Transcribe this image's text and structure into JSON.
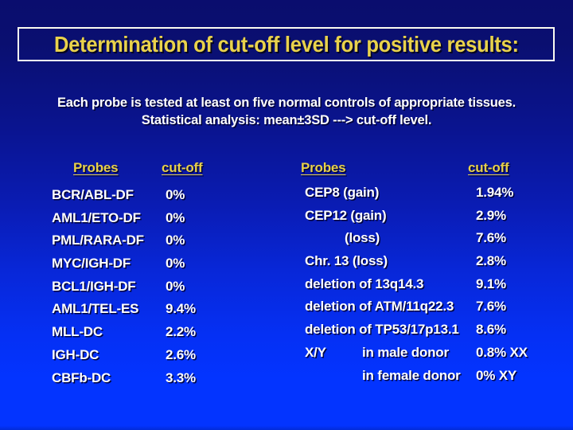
{
  "title": {
    "text": "Determination of cut-off level for positive results:"
  },
  "subtitle": {
    "line1": "Each probe is tested at least on five normal controls of appropriate tissues.",
    "line2": "Statistical analysis: mean±3SD ---> cut-off level."
  },
  "left_table": {
    "headers": {
      "probes": "Probes",
      "cutoff": "cut-off"
    },
    "rows": [
      {
        "probe": "BCR/ABL-DF",
        "cutoff": "0%"
      },
      {
        "probe": "AML1/ETO-DF",
        "cutoff": "0%"
      },
      {
        "probe": "PML/RARA-DF",
        "cutoff": "0%"
      },
      {
        "probe": "MYC/IGH-DF",
        "cutoff": "0%"
      },
      {
        "probe": "BCL1/IGH-DF",
        "cutoff": "0%"
      },
      {
        "probe": "AML1/TEL-ES",
        "cutoff": "9.4%"
      },
      {
        "probe": "MLL-DC",
        "cutoff": "2.2%"
      },
      {
        "probe": "IGH-DC",
        "cutoff": "2.6%"
      },
      {
        "probe": "CBFb-DC",
        "cutoff": "3.3%"
      }
    ]
  },
  "right_table": {
    "headers": {
      "probes": "Probes",
      "cutoff": "cut-off"
    },
    "rows": [
      {
        "probe": "CEP8 (gain)",
        "cutoff": "1.94%"
      },
      {
        "probe": "CEP12 (gain)",
        "cutoff": "2.9%"
      },
      {
        "probe": "(loss)",
        "cutoff": "7.6%"
      },
      {
        "probe": "Chr. 13 (loss)",
        "cutoff": "2.8%"
      },
      {
        "probe": "deletion of 13q14.3",
        "cutoff": "9.1%"
      },
      {
        "probe": "deletion of ATM/11q22.3",
        "cutoff": "7.6%"
      },
      {
        "probe": "deletion of TP53/17p13.1",
        "cutoff": "8.6%"
      },
      {
        "probe": "X/Y",
        "sub_label": "in male donor",
        "cutoff": "0.8% XX"
      },
      {
        "probe": "",
        "sub_label": "in female donor",
        "cutoff": "0% XY"
      }
    ]
  },
  "colors": {
    "background_top": "#0a0d6e",
    "background_bottom": "#0334ff",
    "title_yellow": "#e9d24b",
    "header_yellow": "#e7d04a",
    "body_text": "#ffffff",
    "title_border": "#fbfbf0"
  }
}
